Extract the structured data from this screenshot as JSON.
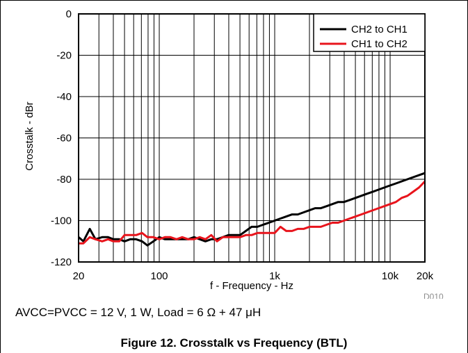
{
  "conditions_text": "AVCC=PVCC = 12 V, 1 W, Load = 6 Ω + 47 μH",
  "figure_caption": "Figure 12. Crosstalk vs Frequency (BTL)",
  "chart_data": {
    "type": "line",
    "xlabel": "f - Frequency - Hz",
    "ylabel": "Crosstalk - dBr",
    "xscale": "log",
    "xlim": [
      20,
      20000
    ],
    "ylim": [
      -120,
      0
    ],
    "x_ticks": [
      {
        "value": 20,
        "label": "20"
      },
      {
        "value": 100,
        "label": "100"
      },
      {
        "value": 1000,
        "label": "1k"
      },
      {
        "value": 10000,
        "label": "10k"
      },
      {
        "value": 20000,
        "label": "20k"
      }
    ],
    "y_ticks": [
      {
        "value": 0,
        "label": "0"
      },
      {
        "value": -20,
        "label": "-20"
      },
      {
        "value": -40,
        "label": "-40"
      },
      {
        "value": -60,
        "label": "-60"
      },
      {
        "value": -80,
        "label": "-80"
      },
      {
        "value": -100,
        "label": "-100"
      },
      {
        "value": -120,
        "label": "-120"
      }
    ],
    "grid": true,
    "legend": "top-right",
    "reference_id": "D010",
    "series": [
      {
        "name": "CH2 to CH1",
        "color": "#000000",
        "points": [
          [
            20,
            -108
          ],
          [
            22,
            -110
          ],
          [
            25,
            -104
          ],
          [
            28,
            -109
          ],
          [
            32,
            -108
          ],
          [
            36,
            -108
          ],
          [
            40,
            -109
          ],
          [
            45,
            -109
          ],
          [
            50,
            -110
          ],
          [
            56,
            -109
          ],
          [
            63,
            -109
          ],
          [
            71,
            -110
          ],
          [
            79,
            -112
          ],
          [
            89,
            -110
          ],
          [
            100,
            -108
          ],
          [
            112,
            -109
          ],
          [
            125,
            -109
          ],
          [
            141,
            -109
          ],
          [
            158,
            -109
          ],
          [
            178,
            -109
          ],
          [
            200,
            -108
          ],
          [
            224,
            -109
          ],
          [
            251,
            -110
          ],
          [
            282,
            -109
          ],
          [
            316,
            -109
          ],
          [
            355,
            -108
          ],
          [
            398,
            -107
          ],
          [
            447,
            -107
          ],
          [
            501,
            -107
          ],
          [
            562,
            -105
          ],
          [
            631,
            -103
          ],
          [
            708,
            -103
          ],
          [
            794,
            -102
          ],
          [
            891,
            -101
          ],
          [
            1000,
            -100
          ],
          [
            1122,
            -99
          ],
          [
            1259,
            -98
          ],
          [
            1413,
            -97
          ],
          [
            1585,
            -97
          ],
          [
            1778,
            -96
          ],
          [
            2000,
            -95
          ],
          [
            2239,
            -94
          ],
          [
            2512,
            -94
          ],
          [
            2818,
            -93
          ],
          [
            3162,
            -92
          ],
          [
            3548,
            -91
          ],
          [
            3981,
            -91
          ],
          [
            4467,
            -90
          ],
          [
            5012,
            -89
          ],
          [
            5623,
            -88
          ],
          [
            6310,
            -87
          ],
          [
            7079,
            -86
          ],
          [
            7943,
            -85
          ],
          [
            8913,
            -84
          ],
          [
            10000,
            -83
          ],
          [
            11220,
            -82
          ],
          [
            12589,
            -81
          ],
          [
            14125,
            -80
          ],
          [
            15849,
            -79
          ],
          [
            17783,
            -78
          ],
          [
            20000,
            -77
          ]
        ]
      },
      {
        "name": "CH1 to CH2",
        "color": "#e8141c",
        "points": [
          [
            20,
            -111
          ],
          [
            22,
            -111
          ],
          [
            25,
            -108
          ],
          [
            28,
            -109
          ],
          [
            32,
            -110
          ],
          [
            36,
            -109
          ],
          [
            40,
            -110
          ],
          [
            45,
            -110
          ],
          [
            50,
            -107
          ],
          [
            56,
            -107
          ],
          [
            63,
            -107
          ],
          [
            71,
            -106
          ],
          [
            79,
            -108
          ],
          [
            89,
            -108
          ],
          [
            100,
            -109
          ],
          [
            112,
            -108
          ],
          [
            125,
            -108
          ],
          [
            141,
            -109
          ],
          [
            158,
            -108
          ],
          [
            178,
            -109
          ],
          [
            200,
            -109
          ],
          [
            224,
            -108
          ],
          [
            251,
            -109
          ],
          [
            282,
            -107
          ],
          [
            316,
            -110
          ],
          [
            355,
            -108
          ],
          [
            398,
            -108
          ],
          [
            447,
            -108
          ],
          [
            501,
            -108
          ],
          [
            562,
            -107
          ],
          [
            631,
            -107
          ],
          [
            708,
            -106
          ],
          [
            794,
            -106
          ],
          [
            891,
            -106
          ],
          [
            1000,
            -106
          ],
          [
            1122,
            -103
          ],
          [
            1259,
            -105
          ],
          [
            1413,
            -105
          ],
          [
            1585,
            -104
          ],
          [
            1778,
            -104
          ],
          [
            2000,
            -103
          ],
          [
            2239,
            -103
          ],
          [
            2512,
            -103
          ],
          [
            2818,
            -102
          ],
          [
            3162,
            -101
          ],
          [
            3548,
            -101
          ],
          [
            3981,
            -100
          ],
          [
            4467,
            -99
          ],
          [
            5012,
            -98
          ],
          [
            5623,
            -97
          ],
          [
            6310,
            -96
          ],
          [
            7079,
            -95
          ],
          [
            7943,
            -94
          ],
          [
            8913,
            -93
          ],
          [
            10000,
            -92
          ],
          [
            11220,
            -91
          ],
          [
            12589,
            -89
          ],
          [
            14125,
            -88
          ],
          [
            15849,
            -86
          ],
          [
            17783,
            -84
          ],
          [
            20000,
            -81
          ]
        ]
      }
    ]
  }
}
